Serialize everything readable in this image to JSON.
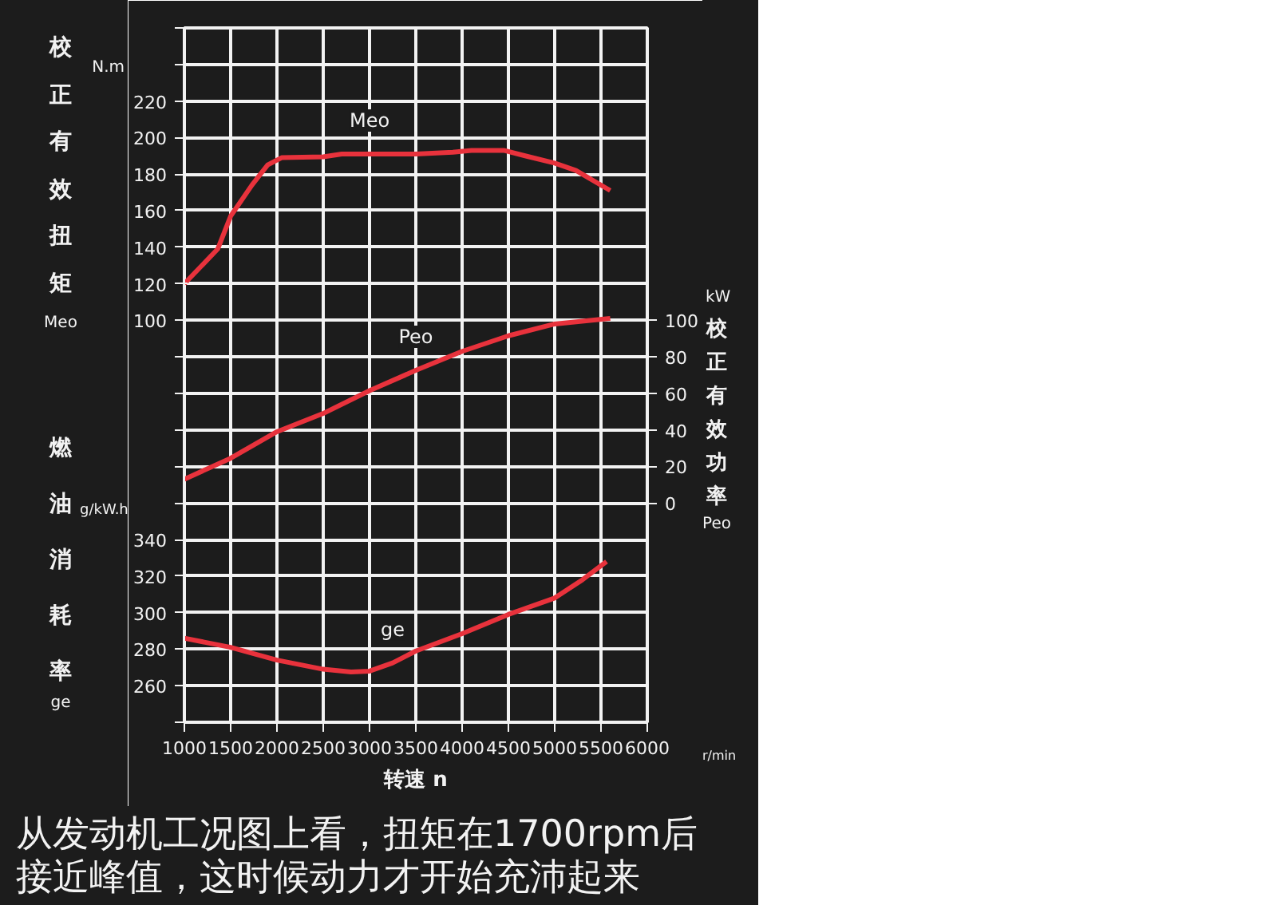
{
  "chart_data": {
    "type": "line",
    "xlabel": "转速 n",
    "ylabel": "校正有效扭矩 Meo",
    "y2label": "校正有效功率 Peo",
    "y3label": "燃油消耗率 ge",
    "x": [
      1000,
      1360,
      1500,
      1730,
      1900,
      2050,
      2500,
      2700,
      3000,
      3500,
      3900,
      4100,
      4450,
      4680,
      5000,
      5230,
      5600
    ],
    "series": [
      {
        "name": "Meo",
        "color": "#e8323c",
        "values": [
          120,
          139,
          157,
          174,
          185,
          189,
          189.5,
          191,
          191,
          191,
          192,
          193,
          193,
          190,
          186,
          182,
          171
        ]
      },
      {
        "name": "Peo",
        "color": "#e8323c",
        "axis": "y2",
        "x": [
          1000,
          1500,
          2000,
          2500,
          3000,
          3500,
          4000,
          4500,
          5000,
          5600
        ],
        "values": [
          13,
          24.5,
          39,
          49,
          61.5,
          72.6,
          83,
          91.5,
          98,
          101
        ]
      },
      {
        "name": "ge",
        "color": "#e8323c",
        "axis": "y3",
        "x": [
          1000,
          1500,
          2000,
          2500,
          2800,
          3000,
          3250,
          3500,
          4000,
          4500,
          5000,
          5300,
          5560
        ],
        "values": [
          286,
          281,
          274,
          269,
          267.5,
          268,
          272.5,
          279,
          288.5,
          299,
          308,
          318,
          328
        ]
      }
    ],
    "xlim": [
      1000,
      6000
    ],
    "xticks": [
      1000,
      1500,
      2000,
      2500,
      3000,
      3500,
      4000,
      4500,
      5000,
      5500,
      6000
    ],
    "ylim": [
      -120,
      260
    ],
    "yticks": [
      {
        "value": -120,
        "label": null
      },
      {
        "value": -100,
        "label": null
      },
      {
        "value": -80,
        "label": null
      },
      {
        "value": -60,
        "label": null
      },
      {
        "value": -40,
        "label": null
      },
      {
        "value": -20,
        "label": null
      },
      {
        "value": 0,
        "label": null
      },
      {
        "value": 20,
        "label": null
      },
      {
        "value": 40,
        "label": null
      },
      {
        "value": 60,
        "label": null
      },
      {
        "value": 80,
        "label": null
      },
      100,
      120,
      140,
      160,
      180,
      200,
      220,
      {
        "value": 240,
        "label": null
      },
      {
        "value": 260,
        "label": null
      }
    ],
    "y2lim": [
      -120,
      260
    ],
    "y2ticks": [
      0,
      20,
      40,
      60,
      80,
      100
    ],
    "y3lim": [
      240,
      620
    ],
    "y3ticks": [
      260,
      280,
      300,
      320,
      340
    ],
    "grid": true,
    "annotations": [
      "N.m",
      "g/kW.h",
      "kW",
      "r/min",
      "从发动机工况图上看，扭矩在1700rpm后接近峰值，这时候动力才开始充沛起来"
    ]
  }
}
